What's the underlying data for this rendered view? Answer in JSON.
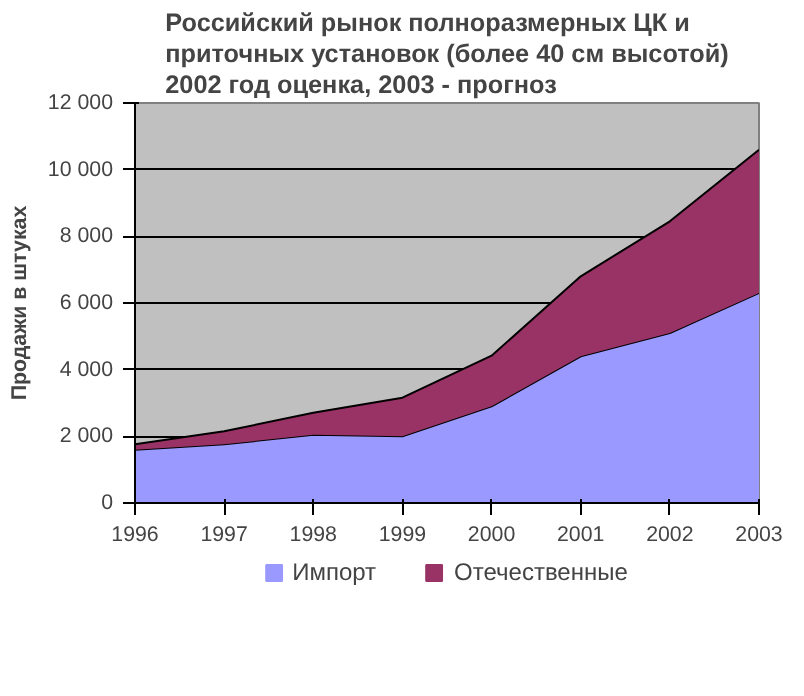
{
  "chart_data": {
    "type": "area",
    "stacked": true,
    "title": "Российский рынок полноразмерных ЦК и\nприточных установок (более 40 см высотой)\n2002 год оценка, 2003 - прогноз",
    "ylabel": "Продажи в штуках",
    "x": [
      1996,
      1997,
      1998,
      1999,
      2000,
      2001,
      2002,
      2003
    ],
    "series": [
      {
        "name": "Импорт",
        "color": "#9999ff",
        "values": [
          1600,
          1760,
          2050,
          2000,
          2900,
          4400,
          5100,
          6300
        ]
      },
      {
        "name": "Отечественные",
        "color": "#993366",
        "values": [
          160,
          390,
          660,
          1160,
          1520,
          2400,
          3350,
          4300
        ]
      }
    ],
    "xlim": [
      1996,
      2003
    ],
    "xticks": [
      1996,
      1997,
      1998,
      1999,
      2000,
      2001,
      2002,
      2003
    ],
    "ylim": [
      0,
      12000
    ],
    "yticks": [
      {
        "value": 0,
        "label": "0"
      },
      {
        "value": 2000,
        "label": "2 000"
      },
      {
        "value": 4000,
        "label": "4 000"
      },
      {
        "value": 6000,
        "label": "6 000"
      },
      {
        "value": 8000,
        "label": "8 000"
      },
      {
        "value": 10000,
        "label": "10 000"
      },
      {
        "value": 12000,
        "label": "12 000"
      }
    ],
    "grid": "y",
    "legend": "bottom"
  }
}
